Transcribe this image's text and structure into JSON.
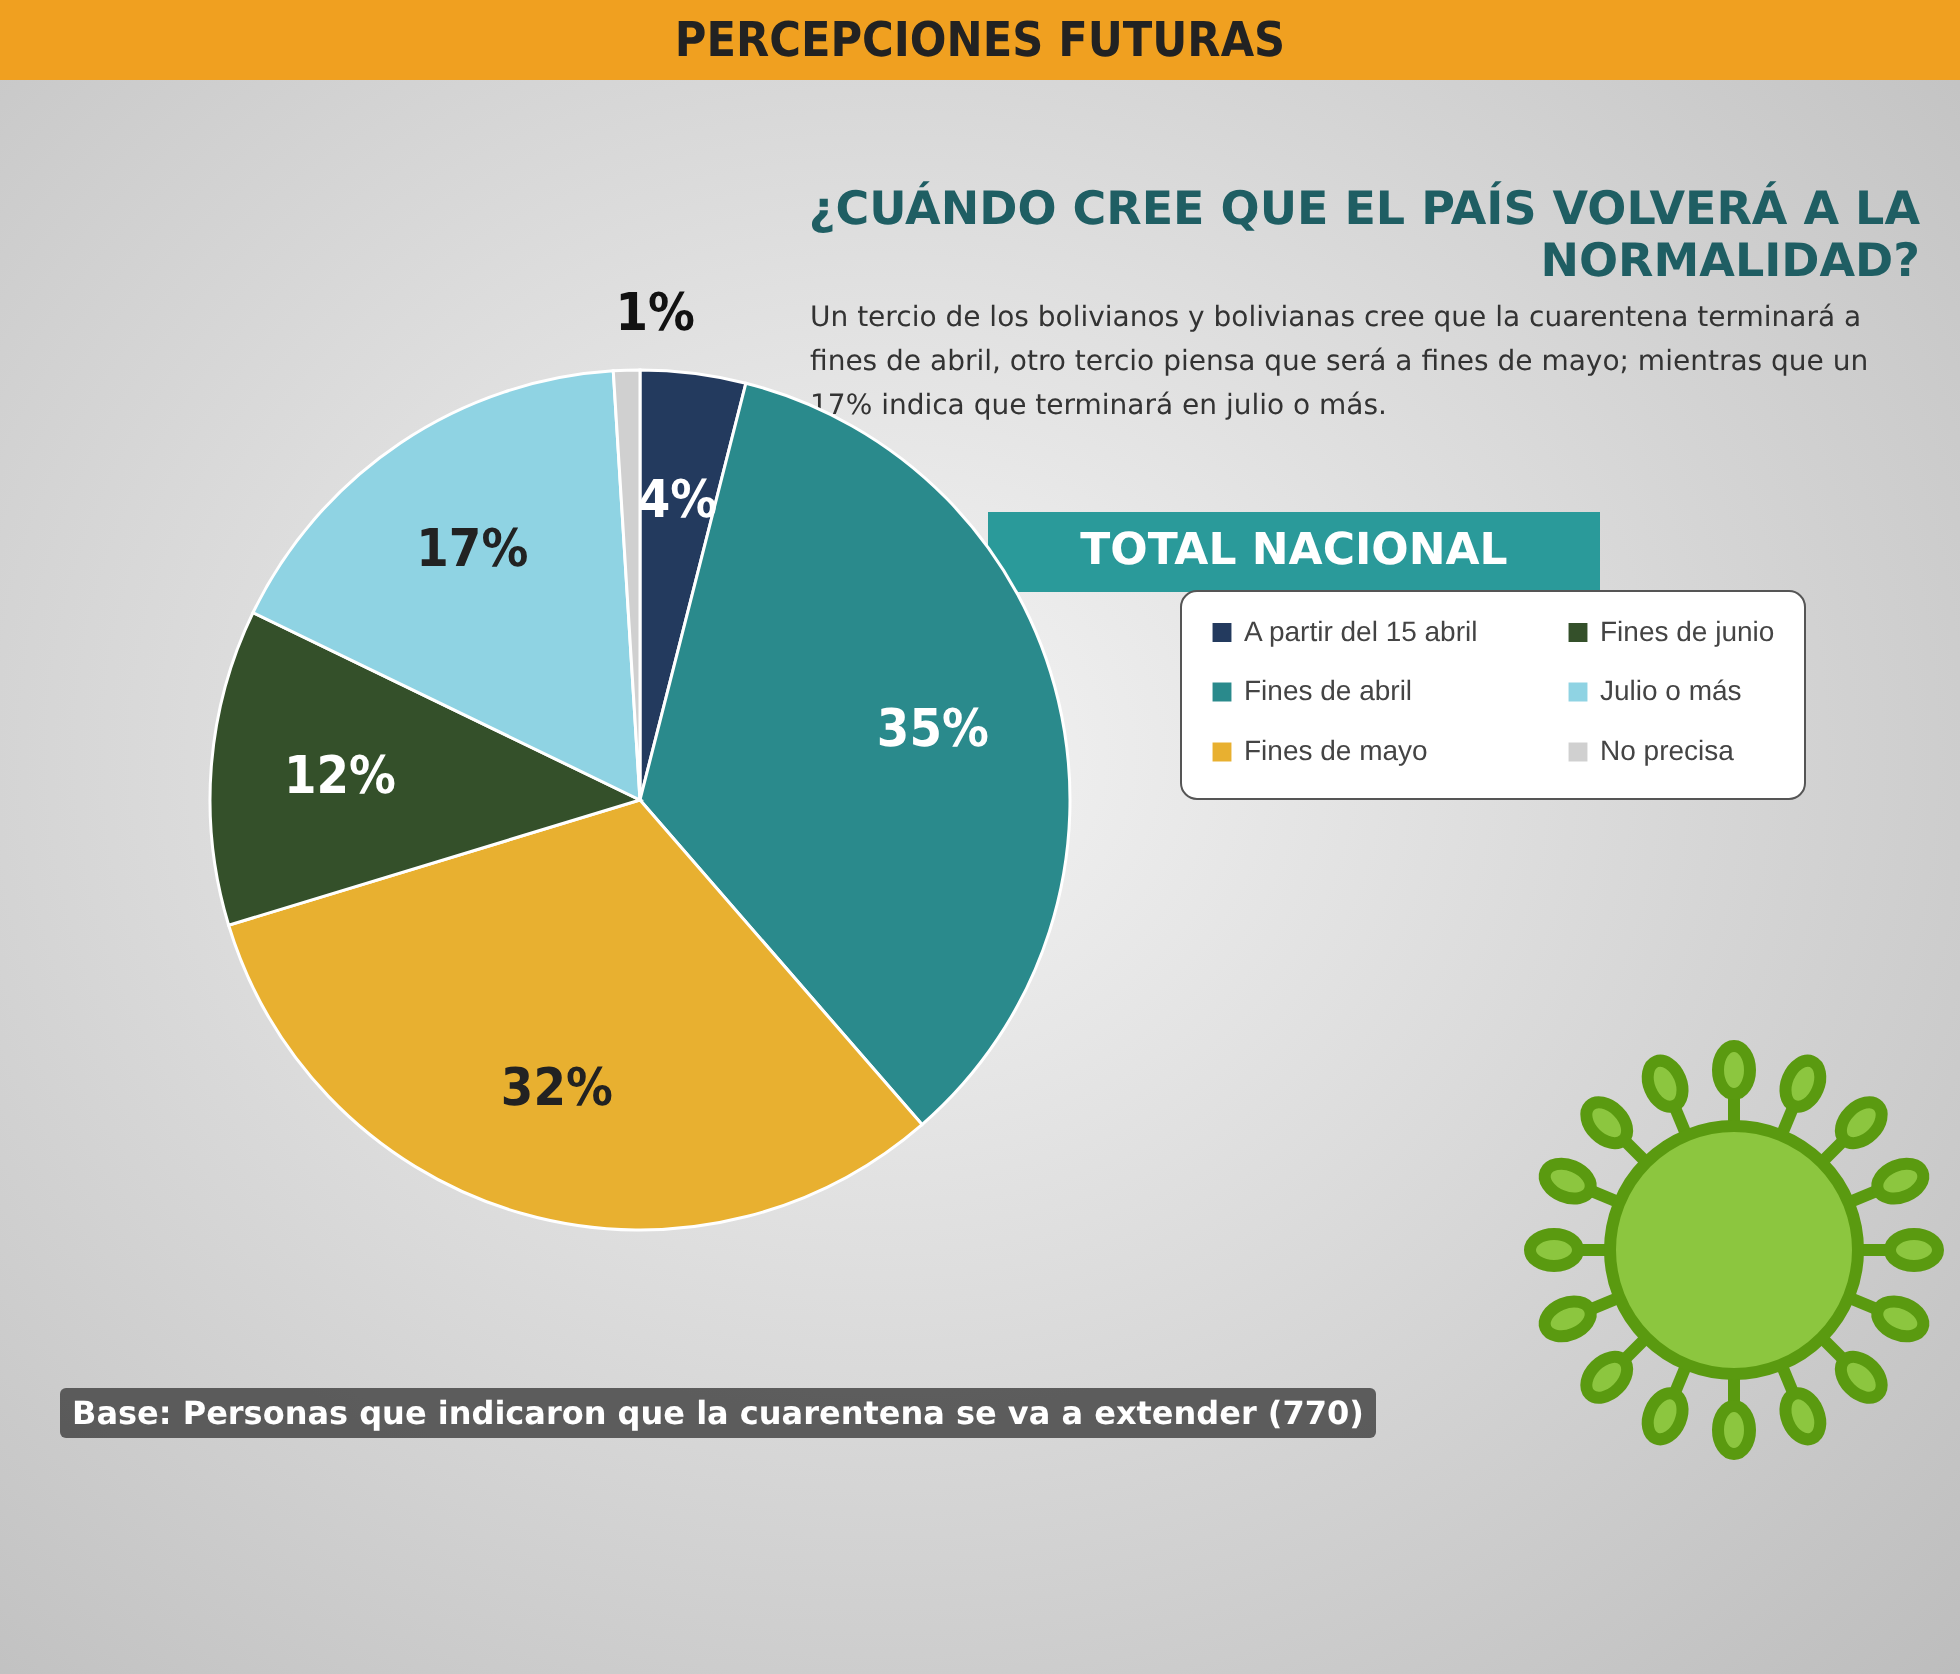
{
  "chart_data": {
    "type": "pie",
    "title": "¿CUÁNDO CREE QUE EL PAÍS VOLVERÁ A LA NORMALIDAD?",
    "subtitle": "Un tercio de los bolivianos y bolivianas cree que la cuarentena terminará a fines de abril, otro tercio piensa que será a fines de mayo; mientras que un 17% indica que terminará en julio o más.",
    "annotations": [
      "PERCEPCIONES FUTURAS",
      "TOTAL NACIONAL",
      "Base: Personas que indicaron que la cuarentena se va a extender (770)"
    ],
    "categories": [
      "A partir del 15 abril",
      "Fines de abril",
      "Fines de mayo",
      "Fines de junio",
      "Julio o más",
      "No precisa"
    ],
    "values": [
      4,
      35,
      32,
      12,
      17,
      1
    ],
    "colors": [
      "#233a5e",
      "#2a8a8c",
      "#e8b030",
      "#34502a",
      "#8fd3e3",
      "#d0d0d0"
    ],
    "value_labels": [
      "4%",
      "35%",
      "32%",
      "12%",
      "17%",
      "1%"
    ],
    "legend": "right"
  }
}
